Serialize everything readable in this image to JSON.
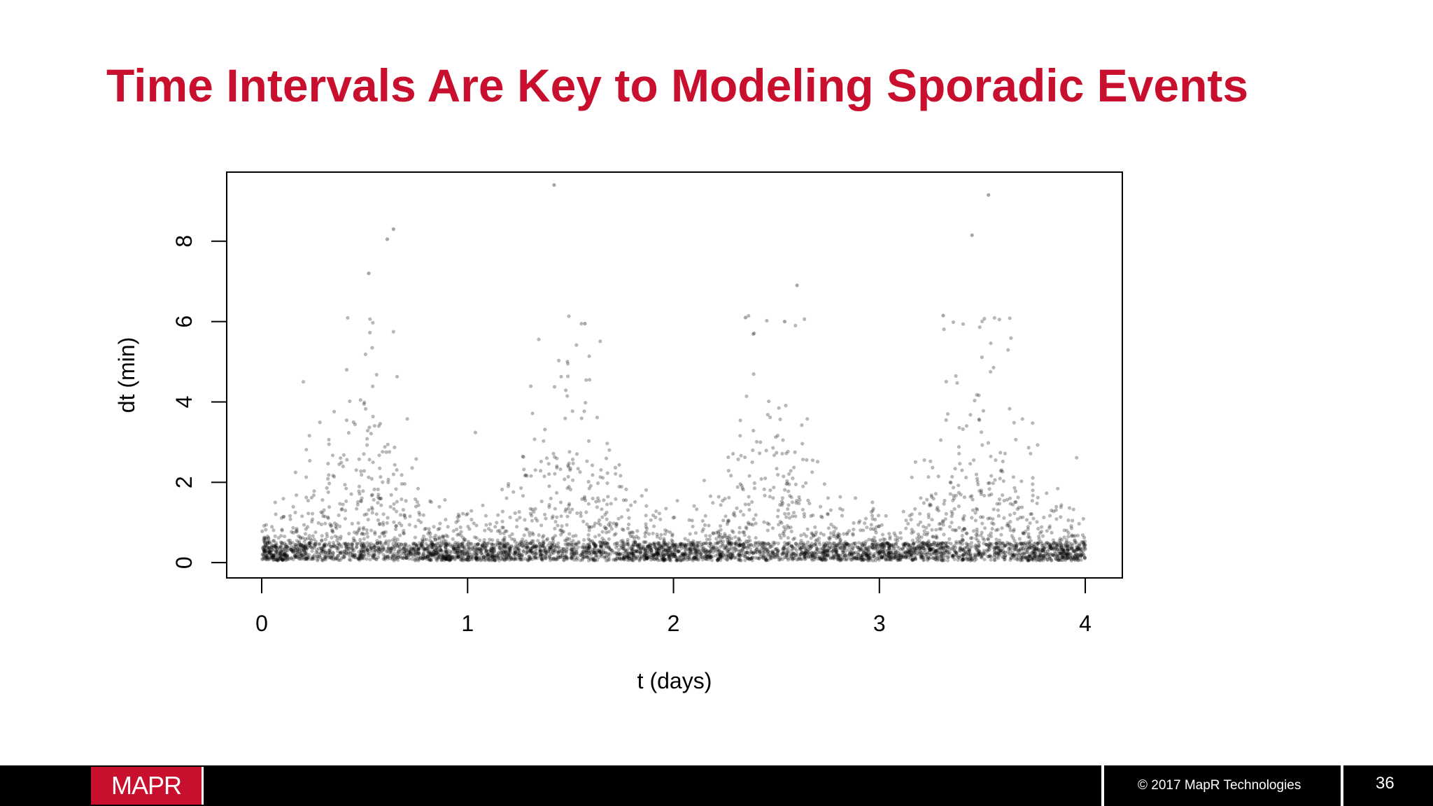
{
  "slide": {
    "title": "Time Intervals Are Key to Modeling Sporadic Events",
    "logo_text": "MAPR",
    "copyright": "© 2017 MapR Technologies",
    "page_number": "36",
    "accent_color": "#c8102e",
    "footer_color": "#000000"
  },
  "chart_data": {
    "type": "scatter",
    "title": "",
    "xlabel": "t (days)",
    "ylabel": "dt (min)",
    "xlim": [
      -0.17,
      4.18
    ],
    "ylim": [
      -0.38,
      9.72
    ],
    "xticks": [
      0,
      1,
      2,
      3,
      4
    ],
    "yticks": [
      0,
      2,
      4,
      6,
      8
    ],
    "grid": false,
    "legend": "none",
    "point_color": "#000000",
    "description_of_points": "Thousands of semi-transparent points forming four daily peaks (around t=0.5, 1.5, 2.5, 3.5) reaching dt up to ~6 min, with dense bands near dt=0.",
    "outliers": [
      {
        "x": 0.52,
        "y": 7.2
      },
      {
        "x": 0.61,
        "y": 8.05
      },
      {
        "x": 0.64,
        "y": 8.3
      },
      {
        "x": 1.42,
        "y": 9.4
      },
      {
        "x": 1.57,
        "y": 5.95
      },
      {
        "x": 2.35,
        "y": 6.1
      },
      {
        "x": 2.54,
        "y": 6.0
      },
      {
        "x": 2.6,
        "y": 6.9
      },
      {
        "x": 3.31,
        "y": 6.15
      },
      {
        "x": 3.45,
        "y": 8.15
      },
      {
        "x": 3.53,
        "y": 9.15
      }
    ]
  }
}
